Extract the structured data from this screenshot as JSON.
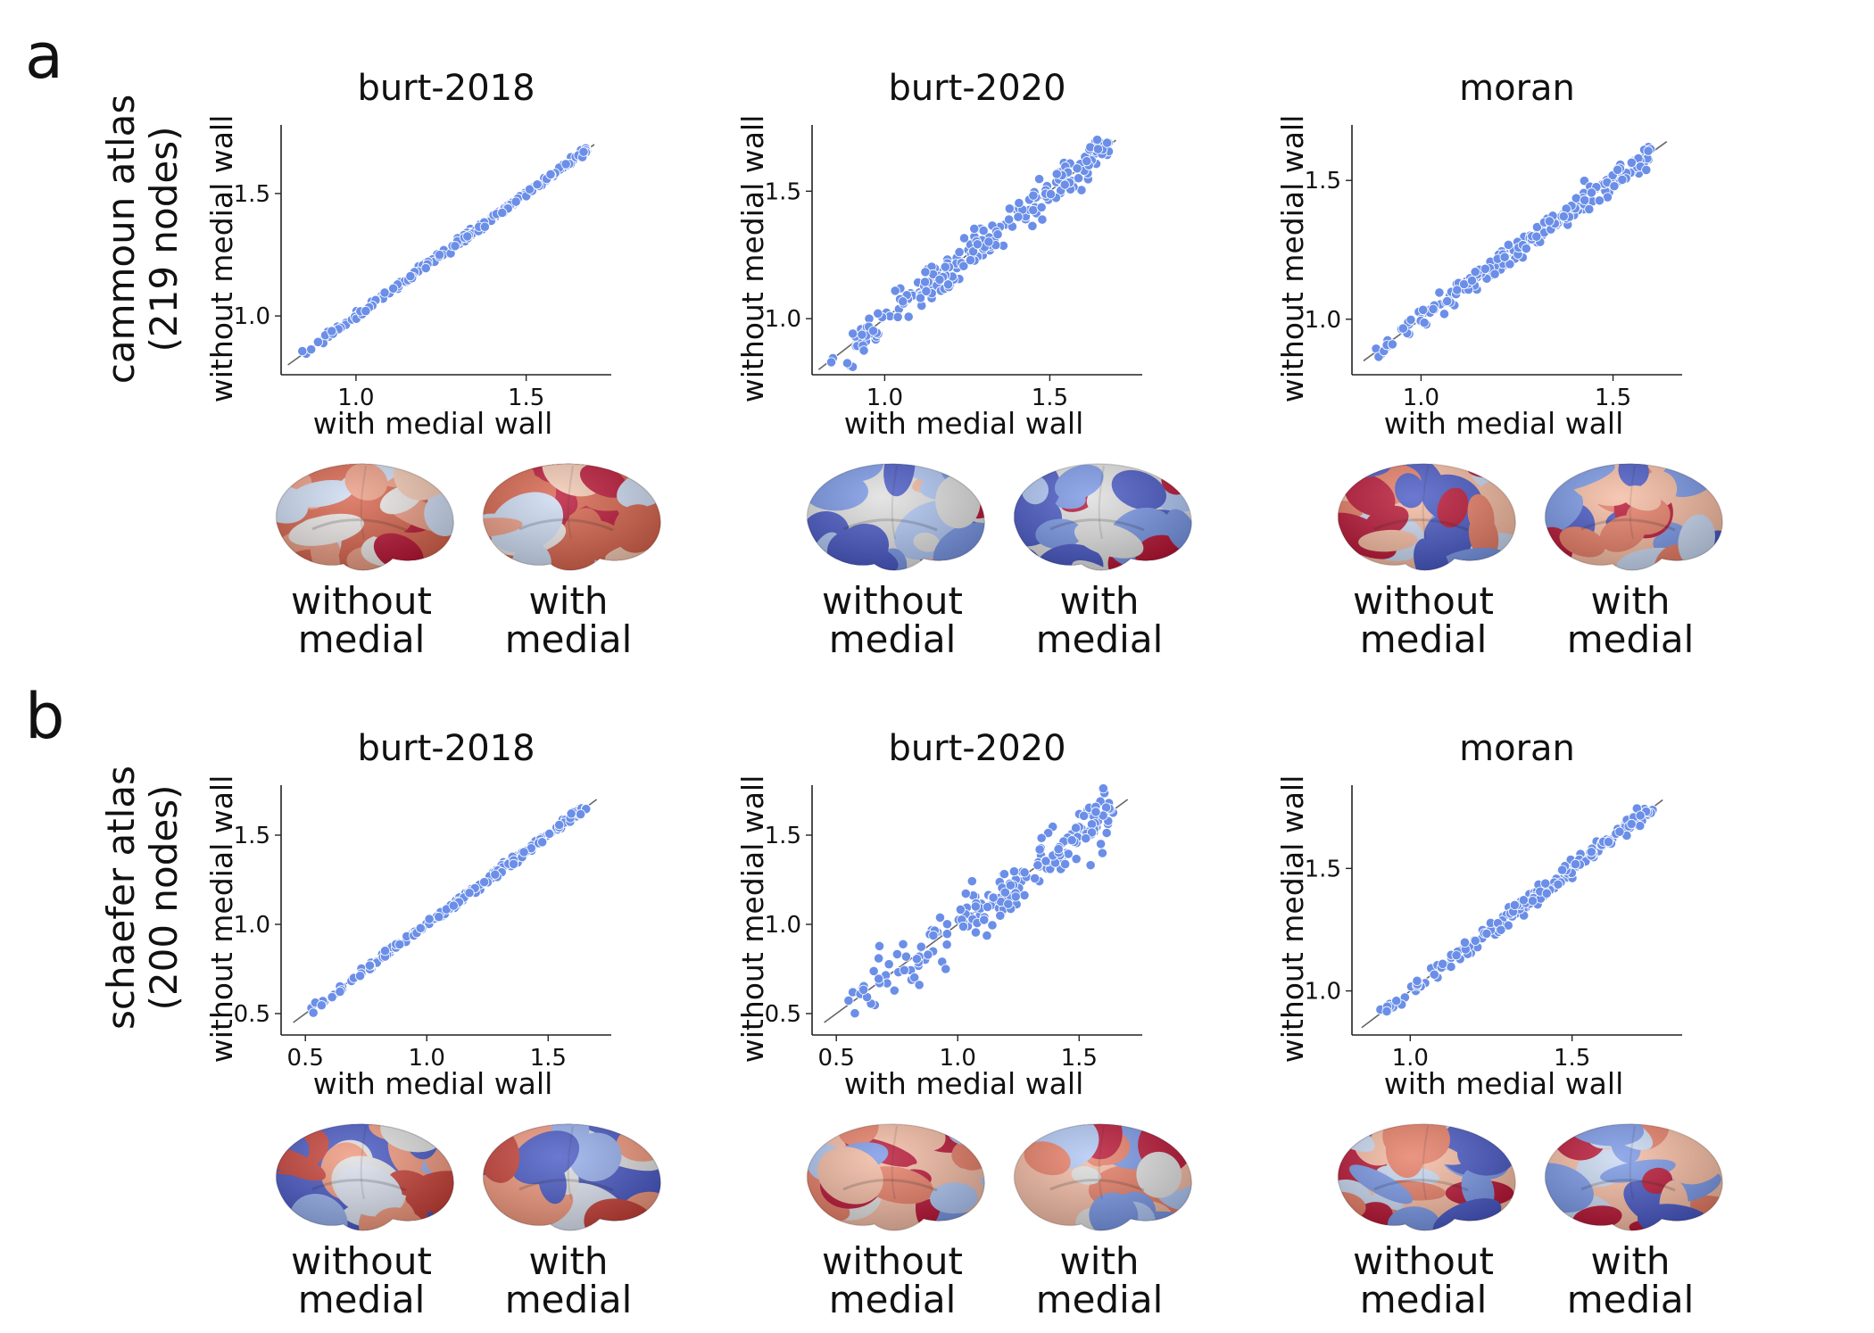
{
  "panels": [
    {
      "letter": "a",
      "row_label_line1": "cammoun atlas",
      "row_label_line2": "(219 nodes)"
    },
    {
      "letter": "b",
      "row_label_line1": "schaefer atlas",
      "row_label_line2": "(200 nodes)"
    }
  ],
  "captions": {
    "without": [
      "without",
      "medial"
    ],
    "with": [
      "with",
      "medial"
    ]
  },
  "colors": {
    "point": "#6b8fe8",
    "line": "#666666",
    "axis": "#222222",
    "cmap_low": "#3a4cc0",
    "cmap_mid": "#dddcdc",
    "cmap_high": "#b40426"
  },
  "chart_data": [
    {
      "type": "scatter",
      "title": "burt-2018",
      "xlabel": "with medial wall",
      "ylabel": "without medial wall",
      "xlim": [
        0.78,
        1.75
      ],
      "ylim": [
        0.76,
        1.78
      ],
      "xticks": [
        1.0,
        1.5
      ],
      "yticks": [
        1.0,
        1.5
      ],
      "tick_labels_x": [
        "1.0",
        "1.5"
      ],
      "tick_labels_y": [
        "1.0",
        "1.5"
      ],
      "identity_line": [
        0.8,
        1.7
      ],
      "n_points": 219,
      "spread": 0.015,
      "range": [
        0.84,
        1.68
      ],
      "grid": false
    },
    {
      "type": "scatter",
      "title": "burt-2020",
      "xlabel": "with medial wall",
      "ylabel": "without medial wall",
      "xlim": [
        0.78,
        1.78
      ],
      "ylim": [
        0.78,
        1.76
      ],
      "xticks": [
        1.0,
        1.5
      ],
      "yticks": [
        1.0,
        1.5
      ],
      "tick_labels_x": [
        "1.0",
        "1.5"
      ],
      "tick_labels_y": [
        "1.0",
        "1.5"
      ],
      "identity_line": [
        0.8,
        1.7
      ],
      "n_points": 219,
      "spread": 0.08,
      "range": [
        0.82,
        1.68
      ],
      "grid": false
    },
    {
      "type": "scatter",
      "title": "moran",
      "xlabel": "with medial wall",
      "ylabel": "without medial wall",
      "xlim": [
        0.82,
        1.68
      ],
      "ylim": [
        0.8,
        1.7
      ],
      "xticks": [
        1.0,
        1.5
      ],
      "yticks": [
        1.0,
        1.5
      ],
      "tick_labels_x": [
        "1.0",
        "1.5"
      ],
      "tick_labels_y": [
        "1.0",
        "1.5"
      ],
      "identity_line": [
        0.85,
        1.64
      ],
      "n_points": 219,
      "spread": 0.045,
      "range": [
        0.88,
        1.6
      ],
      "grid": false
    },
    {
      "type": "scatter",
      "title": "burt-2018",
      "xlabel": "with medial wall",
      "ylabel": "without medial wall",
      "xlim": [
        0.4,
        1.76
      ],
      "ylim": [
        0.38,
        1.78
      ],
      "xticks": [
        0.5,
        1.0,
        1.5
      ],
      "yticks": [
        0.5,
        1.0,
        1.5
      ],
      "tick_labels_x": [
        "0.5",
        "1.0",
        "1.5"
      ],
      "tick_labels_y": [
        "0.5",
        "1.0",
        "1.5"
      ],
      "identity_line": [
        0.45,
        1.7
      ],
      "n_points": 200,
      "spread": 0.025,
      "range": [
        0.48,
        1.66
      ],
      "grid": false
    },
    {
      "type": "scatter",
      "title": "burt-2020",
      "xlabel": "with medial wall",
      "ylabel": "without medial wall",
      "xlim": [
        0.4,
        1.76
      ],
      "ylim": [
        0.38,
        1.78
      ],
      "xticks": [
        0.5,
        1.0,
        1.5
      ],
      "yticks": [
        0.5,
        1.0,
        1.5
      ],
      "tick_labels_x": [
        "0.5",
        "1.0",
        "1.5"
      ],
      "tick_labels_y": [
        "0.5",
        "1.0",
        "1.5"
      ],
      "identity_line": [
        0.45,
        1.7
      ],
      "n_points": 200,
      "spread": 0.15,
      "range": [
        0.5,
        1.64
      ],
      "grid": false
    },
    {
      "type": "scatter",
      "title": "moran",
      "xlabel": "with medial wall",
      "ylabel": "without medial wall",
      "xlim": [
        0.82,
        1.84
      ],
      "ylim": [
        0.82,
        1.84
      ],
      "xticks": [
        1.0,
        1.5
      ],
      "yticks": [
        1.0,
        1.5
      ],
      "tick_labels_x": [
        "1.0",
        "1.5"
      ],
      "tick_labels_y": [
        "1.0",
        "1.5"
      ],
      "identity_line": [
        0.85,
        1.78
      ],
      "n_points": 200,
      "spread": 0.04,
      "range": [
        0.9,
        1.75
      ],
      "grid": false
    }
  ]
}
